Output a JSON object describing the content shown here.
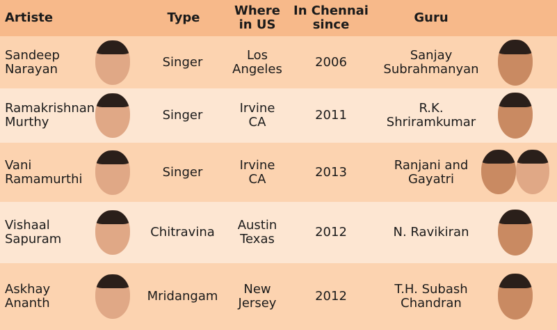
{
  "headers": {
    "artiste": "Artiste",
    "type": "Type",
    "where_l1": "Where",
    "where_l2": "in US",
    "since_l1": "In Chennai",
    "since_l2": "since",
    "guru": "Guru"
  },
  "colors": {
    "header": "#f7b98a",
    "row_dark": "#fcd3b0",
    "row_light": "#fde6d2"
  },
  "rows": [
    {
      "name1": "Sandeep",
      "name2": "Narayan",
      "type": "Singer",
      "where1": "Los",
      "where2": "Angeles",
      "since": "2006",
      "guru1": "Sanjay",
      "guru2": "Subrahmanyan"
    },
    {
      "name1": "Ramakrishnan",
      "name2": "Murthy",
      "type": "Singer",
      "where1": "Irvine",
      "where2": "CA",
      "since": "2011",
      "guru1": "R.K.",
      "guru2": "Shriramkumar"
    },
    {
      "name1": "Vani",
      "name2": "Ramamurthi",
      "type": "Singer",
      "where1": "Irvine",
      "where2": "CA",
      "since": "2013",
      "guru1": "Ranjani and",
      "guru2": "Gayatri"
    },
    {
      "name1": "Vishaal",
      "name2": "Sapuram",
      "type": "Chitravina",
      "where1": "Austin",
      "where2": "Texas",
      "since": "2012",
      "guru1": "N. Ravikiran",
      "guru2": ""
    },
    {
      "name1": "Askhay",
      "name2": "Ananth",
      "type": "Mridangam",
      "where1": "New",
      "where2": "Jersey",
      "since": "2012",
      "guru1": "T.H. Subash",
      "guru2": "Chandran"
    }
  ]
}
